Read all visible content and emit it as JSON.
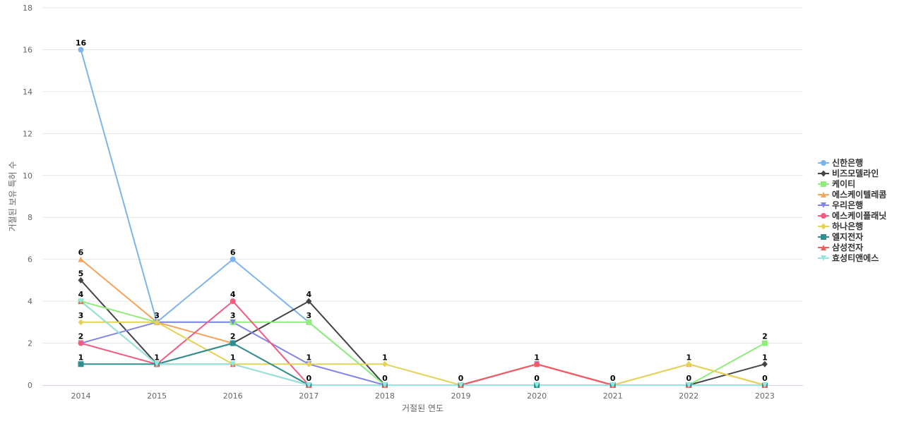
{
  "chart_data": {
    "type": "line",
    "title": "",
    "xlabel": "거절된 연도",
    "ylabel": "거절된 보유 특허 수",
    "ylim": [
      0,
      18
    ],
    "y_ticks": [
      0,
      2,
      4,
      6,
      8,
      10,
      12,
      14,
      16,
      18
    ],
    "x": [
      "2014",
      "2015",
      "2016",
      "2017",
      "2018",
      "2019",
      "2020",
      "2021",
      "2022",
      "2023"
    ],
    "grid": true,
    "legend_position": "right",
    "series": [
      {
        "name": "신한은행",
        "color": "#7cb5ec",
        "marker": "circle",
        "values": [
          16,
          3,
          6,
          3,
          0,
          0,
          0,
          0,
          0,
          0
        ]
      },
      {
        "name": "비즈모델라인",
        "color": "#434348",
        "marker": "diamond",
        "values": [
          5,
          1,
          2,
          4,
          0,
          0,
          1,
          0,
          0,
          1
        ]
      },
      {
        "name": "케이티",
        "color": "#90ed7d",
        "marker": "square",
        "values": [
          4,
          3,
          3,
          3,
          0,
          0,
          0,
          0,
          0,
          2
        ]
      },
      {
        "name": "에스케이텔레콤",
        "color": "#f7a35c",
        "marker": "triangle",
        "values": [
          6,
          3,
          2,
          0,
          0,
          0,
          0,
          0,
          1,
          0
        ]
      },
      {
        "name": "우리은행",
        "color": "#8085e9",
        "marker": "triangle-down",
        "values": [
          2,
          3,
          3,
          1,
          0,
          0,
          1,
          0,
          0,
          0
        ]
      },
      {
        "name": "에스케이플래닛",
        "color": "#f15c80",
        "marker": "circle",
        "values": [
          2,
          1,
          4,
          0,
          0,
          0,
          1,
          0,
          0,
          0
        ]
      },
      {
        "name": "하나은행",
        "color": "#e4d354",
        "marker": "diamond",
        "values": [
          3,
          3,
          1,
          1,
          1,
          0,
          0,
          0,
          1,
          0
        ]
      },
      {
        "name": "엘지전자",
        "color": "#2b908f",
        "marker": "square",
        "values": [
          1,
          1,
          2,
          0,
          0,
          0,
          0,
          0,
          0,
          0
        ]
      },
      {
        "name": "삼성전자",
        "color": "#f45b5b",
        "marker": "triangle",
        "values": [
          4,
          1,
          1,
          0,
          0,
          0,
          1,
          0,
          0,
          0
        ]
      },
      {
        "name": "효성티앤에스",
        "color": "#91e8e1",
        "marker": "triangle-down",
        "values": [
          4,
          1,
          1,
          0,
          0,
          0,
          0,
          0,
          0,
          0
        ]
      }
    ],
    "data_labels": [
      {
        "x": "2014",
        "y": 16,
        "text": "16"
      },
      {
        "x": "2014",
        "y": 6,
        "text": "6"
      },
      {
        "x": "2014",
        "y": 5,
        "text": "5"
      },
      {
        "x": "2014",
        "y": 4,
        "text": "4"
      },
      {
        "x": "2014",
        "y": 3,
        "text": "3"
      },
      {
        "x": "2014",
        "y": 2,
        "text": "2"
      },
      {
        "x": "2014",
        "y": 1,
        "text": "1"
      },
      {
        "x": "2015",
        "y": 3,
        "text": "3"
      },
      {
        "x": "2015",
        "y": 1,
        "text": "1"
      },
      {
        "x": "2016",
        "y": 6,
        "text": "6"
      },
      {
        "x": "2016",
        "y": 4,
        "text": "4"
      },
      {
        "x": "2016",
        "y": 3,
        "text": "3"
      },
      {
        "x": "2016",
        "y": 2,
        "text": "2"
      },
      {
        "x": "2016",
        "y": 1,
        "text": "1"
      },
      {
        "x": "2017",
        "y": 4,
        "text": "4"
      },
      {
        "x": "2017",
        "y": 3,
        "text": "3"
      },
      {
        "x": "2017",
        "y": 1,
        "text": "1"
      },
      {
        "x": "2017",
        "y": 0,
        "text": "0"
      },
      {
        "x": "2018",
        "y": 1,
        "text": "1"
      },
      {
        "x": "2018",
        "y": 0,
        "text": "0"
      },
      {
        "x": "2019",
        "y": 0,
        "text": "0"
      },
      {
        "x": "2020",
        "y": 1,
        "text": "1"
      },
      {
        "x": "2020",
        "y": 0,
        "text": "0"
      },
      {
        "x": "2021",
        "y": 0,
        "text": "0"
      },
      {
        "x": "2022",
        "y": 1,
        "text": "1"
      },
      {
        "x": "2022",
        "y": 0,
        "text": "0"
      },
      {
        "x": "2023",
        "y": 2,
        "text": "2"
      },
      {
        "x": "2023",
        "y": 1,
        "text": "1"
      },
      {
        "x": "2023",
        "y": 0,
        "text": "0"
      }
    ]
  }
}
